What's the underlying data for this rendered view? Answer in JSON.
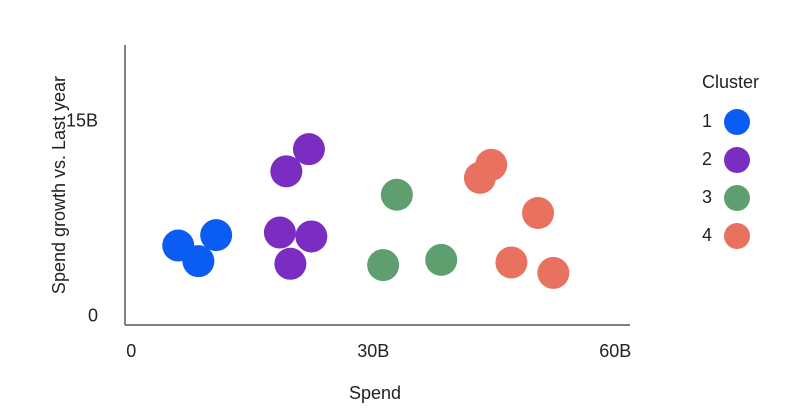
{
  "chart_data": {
    "type": "scatter",
    "x_label": "Spend",
    "y_label": "Spend growth vs. Last year",
    "legend_title": "Cluster",
    "legend": "right",
    "xlim": [
      -0.4,
      62.2
    ],
    "ylim": [
      -0.7,
      20.8
    ],
    "xticks": [
      0,
      {
        "value": 30,
        "label": "30B"
      },
      {
        "value": 60,
        "label": "60B"
      }
    ],
    "yticks": [
      0,
      {
        "value": 15,
        "label": "15B"
      }
    ],
    "grid": false,
    "series": [
      {
        "name": "1",
        "color": "#0b5cf2",
        "x": [
          6.2,
          8.7,
          10.9
        ],
        "values": [
          5.4,
          4.2,
          6.2
        ]
      },
      {
        "name": "2",
        "color": "#7a2dc0",
        "x": [
          22.4,
          19.6,
          18.8,
          22.7,
          20.1
        ],
        "values": [
          12.8,
          11.1,
          6.4,
          6.1,
          4.0
        ]
      },
      {
        "name": "3",
        "color": "#5f9e6f",
        "x": [
          33.3,
          31.6,
          38.8
        ],
        "values": [
          9.3,
          3.9,
          4.3
        ]
      },
      {
        "name": "4",
        "color": "#e8725f",
        "x": [
          45.0,
          43.6,
          50.8,
          47.5,
          52.7
        ],
        "values": [
          11.6,
          10.6,
          7.9,
          4.1,
          3.3
        ]
      }
    ]
  }
}
